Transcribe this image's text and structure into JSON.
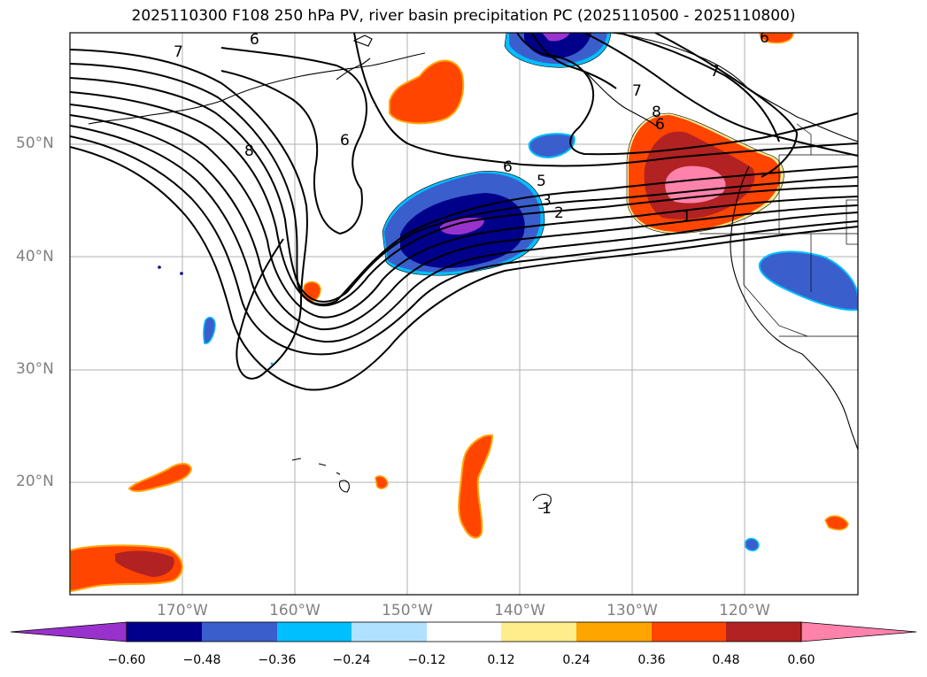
{
  "title": "2025110300 F108 250 hPa PV, river basin precipitation PC (2025110500 - 2025110800)",
  "lat_labels": [
    "50°N",
    "40°N",
    "30°N",
    "20°N"
  ],
  "lon_labels": [
    "170°W",
    "160°W",
    "150°W",
    "140°W",
    "130°W",
    "120°W"
  ],
  "contour_labels": [
    "7",
    "6",
    "8",
    "6",
    "6",
    "5",
    "3",
    "2",
    "1",
    "7",
    "7",
    "1",
    "6",
    "8",
    "6"
  ],
  "colorbar": {
    "ticks": [
      "−0.60",
      "−0.48",
      "−0.36",
      "−0.24",
      "−0.12",
      "0.12",
      "0.24",
      "0.36",
      "0.48",
      "0.60"
    ],
    "colors": [
      "#9932cc",
      "#00008b",
      "#3a5fcd",
      "#00bfff",
      "#b0e2ff",
      "#ffffff",
      "#ffec8b",
      "#ffa500",
      "#ff4500",
      "#b22222",
      "#ff82ab"
    ]
  }
}
